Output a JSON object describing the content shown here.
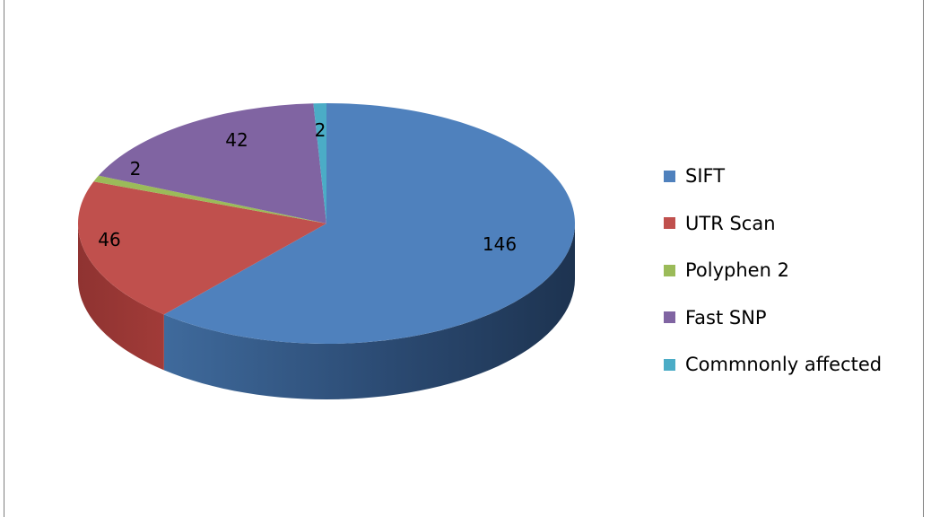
{
  "chart_data": {
    "type": "pie",
    "title": "",
    "categories": [
      "SIFT",
      "UTR Scan",
      "Polyphen 2",
      "Fast SNP",
      "Commnonly affected"
    ],
    "values": [
      146,
      46,
      2,
      42,
      2
    ],
    "data_labels": [
      "146",
      "46",
      "2",
      "42",
      "2"
    ],
    "colors": [
      "#4f81bd",
      "#c0504d",
      "#9bbb59",
      "#8064a2",
      "#4bacc6"
    ],
    "style": "3d",
    "legend_position": "right"
  }
}
